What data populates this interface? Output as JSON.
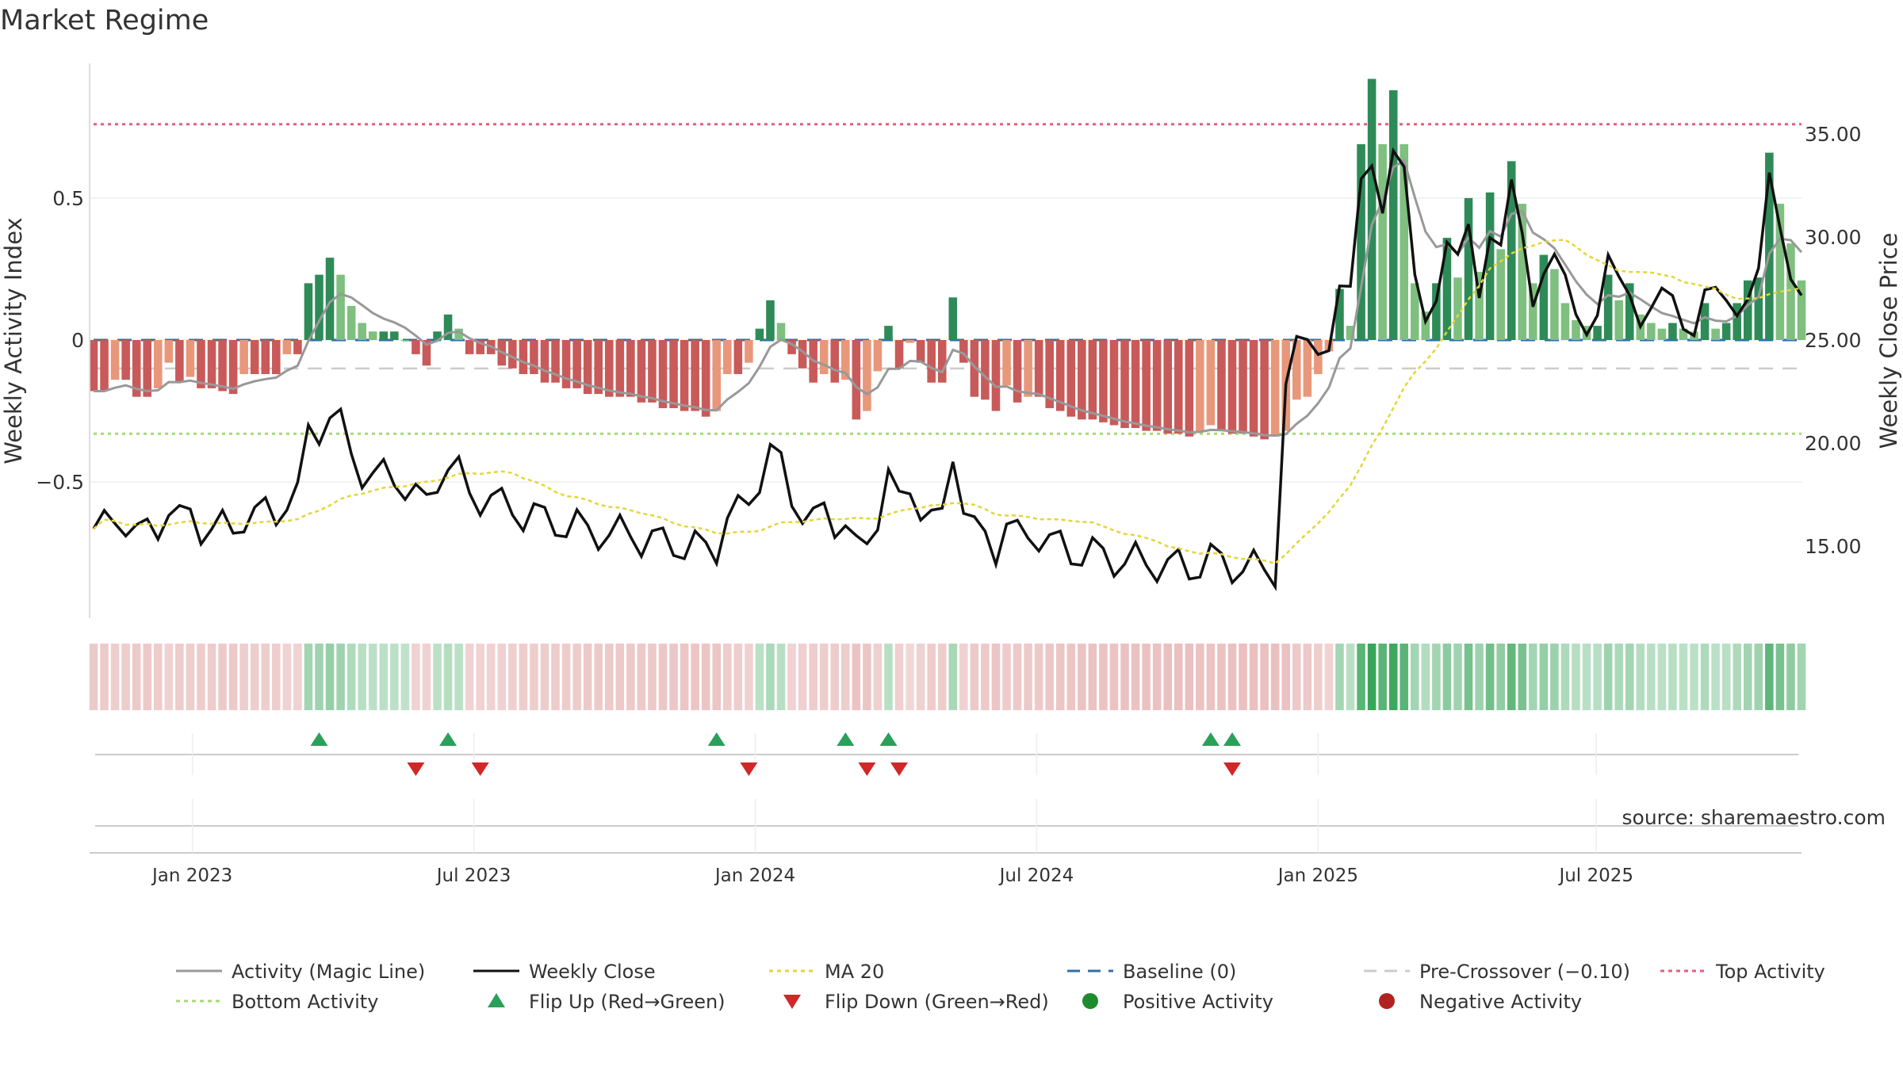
{
  "title": "Market Regime",
  "source": "source: sharemaestro.com",
  "colors": {
    "pos_dark": "#2e8b57",
    "pos_light": "#7fbf7f",
    "neg_dark": "#c85a5a",
    "neg_light": "#e8977a",
    "close": "#111111",
    "magic": "#999999",
    "ma20": "#e6d535",
    "baseline": "#2f6fa8",
    "precross": "#cccccc",
    "top": "#e06080",
    "bottom": "#a8d878",
    "flip_up": "#2aa05a",
    "flip_down": "#d02828",
    "pos_marker": "#1e8c2e",
    "neg_marker": "#b22222"
  },
  "chart_data": {
    "type": "bar",
    "title": "Market Regime",
    "ylabel_left": "Weekly Activity Index",
    "ylabel_right": "Weekly Close Price",
    "left_ticks": [
      "0.5",
      "0",
      "−0.5"
    ],
    "left_tick_values": [
      0.5,
      0,
      -0.5
    ],
    "right_ticks": [
      "35.00",
      "30.00",
      "25.00",
      "20.00",
      "15.00"
    ],
    "right_tick_values": [
      35,
      30,
      25,
      20,
      15
    ],
    "ylim_left": [
      -0.98,
      0.98
    ],
    "ylim_right": [
      11.5,
      38.5
    ],
    "x_ticks": [
      "Jan 2023",
      "Jul 2023",
      "Jan 2024",
      "Jul 2024",
      "Jan 2025",
      "Jul 2025"
    ],
    "x_tick_weeks": [
      9.2,
      35.4,
      61.6,
      87.8,
      114.0,
      139.9
    ],
    "n_weeks": 153,
    "top_activity": 0.76,
    "bottom_activity": -0.33,
    "pre_crossover": -0.1,
    "baseline": 0,
    "flip_up_weeks": [
      21,
      33,
      58,
      70,
      74,
      104,
      106
    ],
    "flip_down_weeks": [
      30,
      36,
      61,
      72,
      75,
      106
    ],
    "legend": [
      {
        "label": "Activity (Magic Line)",
        "kind": "line",
        "color": "#999999",
        "dash": "",
        "width": 3
      },
      {
        "label": "Weekly Close",
        "kind": "line",
        "color": "#111111",
        "dash": "",
        "width": 3
      },
      {
        "label": "MA 20",
        "kind": "line",
        "color": "#e6d535",
        "dash": "5,5",
        "width": 3
      },
      {
        "label": "Baseline (0)",
        "kind": "line",
        "color": "#2f6fa8",
        "dash": "16,10",
        "width": 3
      },
      {
        "label": "Pre-Crossover (−0.10)",
        "kind": "line",
        "color": "#cccccc",
        "dash": "16,10",
        "width": 3
      },
      {
        "label": "Top Activity",
        "kind": "line",
        "color": "#e06080",
        "dash": "5,5",
        "width": 3
      },
      {
        "label": "Bottom Activity",
        "kind": "line",
        "color": "#a8d878",
        "dash": "5,5",
        "width": 3
      },
      {
        "label": "Flip Up (Red→Green)",
        "kind": "tri-up",
        "color": "#2aa05a"
      },
      {
        "label": "Flip Down (Green→Red)",
        "kind": "tri-down",
        "color": "#d02828"
      },
      {
        "label": "Positive Activity",
        "kind": "dot",
        "color": "#1e8c2e"
      },
      {
        "label": "Negative Activity",
        "kind": "dot",
        "color": "#b22222"
      }
    ],
    "activity": [
      -0.18,
      -0.18,
      -0.14,
      -0.14,
      -0.2,
      -0.2,
      -0.17,
      -0.08,
      -0.15,
      -0.13,
      -0.17,
      -0.17,
      -0.18,
      -0.19,
      -0.12,
      -0.12,
      -0.12,
      -0.12,
      -0.05,
      -0.05,
      0.2,
      0.23,
      0.29,
      0.23,
      0.12,
      0.06,
      0.03,
      0.03,
      0.03,
      0.0,
      -0.05,
      -0.09,
      0.03,
      0.09,
      0.04,
      -0.05,
      -0.05,
      -0.05,
      -0.09,
      -0.1,
      -0.12,
      -0.12,
      -0.15,
      -0.15,
      -0.17,
      -0.17,
      -0.19,
      -0.19,
      -0.2,
      -0.2,
      -0.2,
      -0.22,
      -0.22,
      -0.24,
      -0.24,
      -0.25,
      -0.25,
      -0.27,
      -0.25,
      -0.12,
      -0.12,
      -0.08,
      0.04,
      0.14,
      0.06,
      -0.05,
      -0.1,
      -0.15,
      -0.12,
      -0.15,
      -0.14,
      -0.28,
      -0.25,
      -0.11,
      0.05,
      -0.1,
      -0.01,
      -0.08,
      -0.15,
      -0.15,
      0.15,
      -0.08,
      -0.2,
      -0.21,
      -0.25,
      -0.16,
      -0.22,
      -0.2,
      -0.2,
      -0.24,
      -0.25,
      -0.27,
      -0.28,
      -0.28,
      -0.29,
      -0.3,
      -0.31,
      -0.31,
      -0.32,
      -0.32,
      -0.33,
      -0.33,
      -0.34,
      -0.32,
      -0.3,
      -0.32,
      -0.33,
      -0.33,
      -0.34,
      -0.35,
      -0.34,
      -0.32,
      -0.21,
      -0.2,
      -0.12,
      -0.04,
      0.18,
      0.05,
      0.69,
      0.92,
      0.69,
      0.88,
      0.69,
      0.2,
      0.1,
      0.2,
      0.36,
      0.22,
      0.5,
      0.24,
      0.52,
      0.32,
      0.63,
      0.48,
      0.2,
      0.3,
      0.25,
      0.13,
      0.07,
      0.05,
      0.05,
      0.23,
      0.14,
      0.2,
      0.09,
      0.06,
      0.04,
      0.06,
      0.04,
      0.03,
      0.13,
      0.04,
      0.06,
      0.13,
      0.21,
      0.22,
      0.66,
      0.48,
      0.34,
      0.21
    ]
  }
}
